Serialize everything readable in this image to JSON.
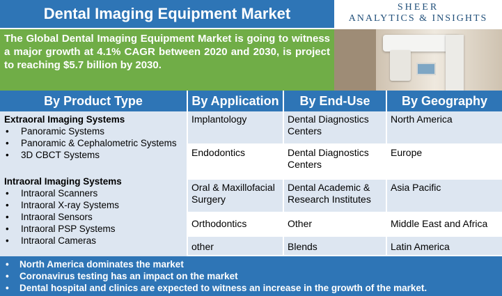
{
  "title": "Dental Imaging Equipment Market",
  "brand": {
    "line1": "SHEER",
    "line2": "ANALYTICS & INSIGHTS"
  },
  "summary": "The Global Dental Imaging Equipment Market is going to witness a major growth at 4.1% CAGR between 2020 and 2030, is project to reaching $5.7 billion by 2030.",
  "headers": [
    "By Product Type",
    "By Application",
    "By End-Use",
    "By Geography"
  ],
  "product_type": {
    "extraoral": {
      "title": "Extraoral Imaging Systems",
      "items": [
        "Panoramic Systems",
        "Panoramic & Cephalometric Systems",
        "3D CBCT Systems"
      ]
    },
    "intraoral": {
      "title": "Intraoral Imaging Systems",
      "items": [
        "Intraoral Scanners",
        "Intraoral X-ray Systems",
        "Intraoral Sensors",
        "Intraoral PSP Systems",
        "Intraoral Cameras"
      ]
    }
  },
  "rows": [
    {
      "application": "Implantology",
      "end_use": "Dental Diagnostics Centers",
      "geography": "North America"
    },
    {
      "application": "Endodontics",
      "end_use": "Dental Diagnostics Centers",
      "geography": "Europe"
    },
    {
      "application": "Oral & Maxillofacial Surgery",
      "end_use": "Dental Academic & Research Institutes",
      "geography": "Asia Pacific"
    },
    {
      "application": "Orthodontics",
      "end_use": "Other",
      "geography": "Middle East and Africa"
    },
    {
      "application": "other",
      "end_use": "Blends",
      "geography": "Latin America"
    }
  ],
  "footer": [
    "North America dominates the market",
    "Coronavirus testing has an impact on the market",
    "Dental hospital and clinics are expected to witness an increase in the growth of the market."
  ],
  "colors": {
    "blue": "#2e75b6",
    "green": "#70ad47",
    "light_blue": "#dde6f1",
    "white": "#ffffff"
  }
}
